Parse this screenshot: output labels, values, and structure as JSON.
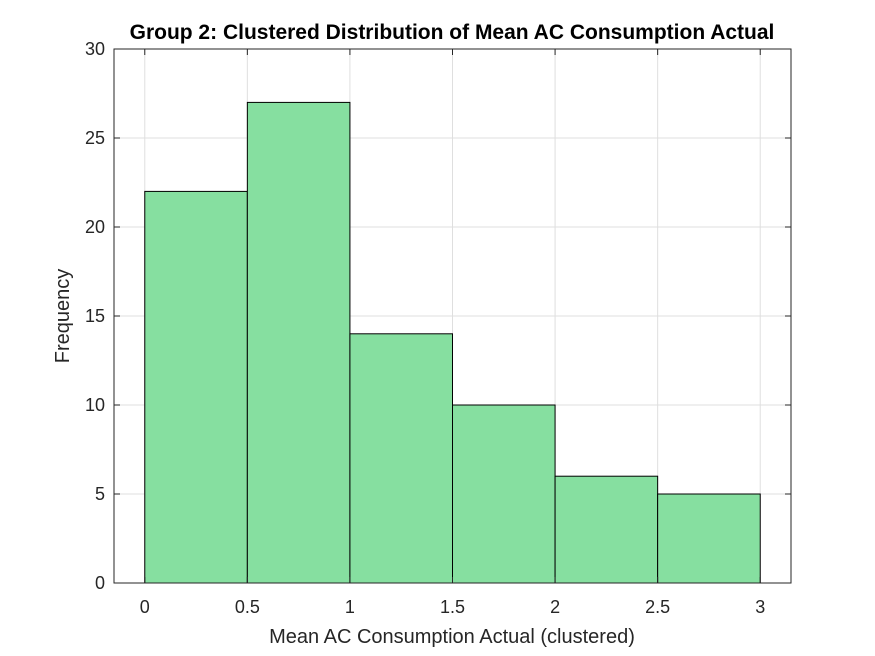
{
  "chart_data": {
    "type": "bar",
    "title": "Group 2: Clustered Distribution of Mean AC Consumption Actual",
    "xlabel": "Mean AC Consumption Actual (clustered)",
    "ylabel": "Frequency",
    "bins": [
      {
        "from": 0,
        "to": 0.5,
        "value": 22
      },
      {
        "from": 0.5,
        "to": 1,
        "value": 27
      },
      {
        "from": 1,
        "to": 1.5,
        "value": 14
      },
      {
        "from": 1.5,
        "to": 2,
        "value": 10
      },
      {
        "from": 2,
        "to": 2.5,
        "value": 6
      },
      {
        "from": 2.5,
        "to": 3,
        "value": 5
      }
    ],
    "xlim": [
      -0.15,
      3.15
    ],
    "ylim": [
      0,
      30
    ],
    "xticks": [
      0,
      0.5,
      1,
      1.5,
      2,
      2.5,
      3
    ],
    "xtick_labels": [
      "0",
      "0.5",
      "1",
      "1.5",
      "2",
      "2.5",
      "3"
    ],
    "yticks": [
      0,
      5,
      10,
      15,
      20,
      25,
      30
    ],
    "ytick_labels": [
      "0",
      "5",
      "10",
      "15",
      "20",
      "25",
      "30"
    ],
    "grid": true,
    "bar_color": "#86dfa0",
    "edge_color": "#000000"
  }
}
